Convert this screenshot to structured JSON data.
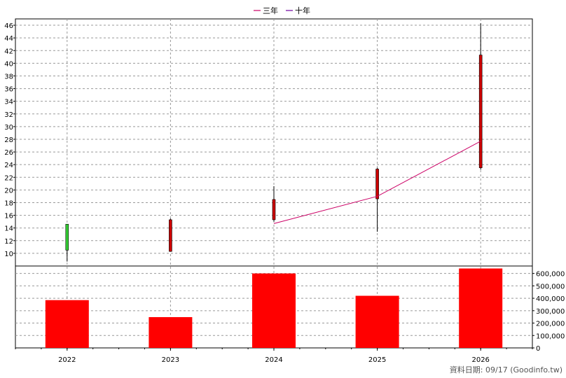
{
  "legend": [
    {
      "name": "三年",
      "color": "#CC0066"
    },
    {
      "name": "十年",
      "color": "#7000A0"
    }
  ],
  "footer": "資料日期: 09/17  (Goodinfo.tw)",
  "chart_data": [
    {
      "type": "candlestick",
      "categories": [
        "2022",
        "2023",
        "2024",
        "2025",
        "2026"
      ],
      "ylim": [
        8,
        47
      ],
      "yticks": [
        10,
        12,
        14,
        16,
        18,
        20,
        22,
        24,
        26,
        28,
        30,
        32,
        34,
        36,
        38,
        40,
        42,
        44,
        46
      ],
      "candles": [
        {
          "open": 10.5,
          "close": 14.6,
          "high": 14.6,
          "low": 8.7,
          "color": "#33CC33"
        },
        {
          "open": 15.3,
          "close": 10.3,
          "high": 15.5,
          "low": 10.3,
          "color": "#CC0000"
        },
        {
          "open": 18.5,
          "close": 15.3,
          "high": 20.6,
          "low": 15.0,
          "color": "#CC0000"
        },
        {
          "open": 23.3,
          "close": 18.6,
          "high": 23.5,
          "low": 13.4,
          "color": "#CC0000"
        },
        {
          "open": 41.3,
          "close": 23.5,
          "high": 46.3,
          "low": 23.2,
          "color": "#CC0000"
        }
      ],
      "series": [
        {
          "name": "三年",
          "color": "#CC0066",
          "points": [
            [
              2,
              14.7
            ],
            [
              3,
              19.0
            ],
            [
              4,
              27.7
            ]
          ]
        }
      ],
      "grid": true
    },
    {
      "type": "bar",
      "categories": [
        "2022",
        "2023",
        "2024",
        "2025",
        "2026"
      ],
      "values": [
        385000,
        248000,
        600000,
        420000,
        640000
      ],
      "color": "#FF0000",
      "ylim": [
        0,
        660000
      ],
      "yticks": [
        0,
        100000,
        200000,
        300000,
        400000,
        500000,
        600000
      ],
      "ytick_labels": [
        "0",
        "100,000",
        "200,000",
        "300,000",
        "400,000",
        "500,000",
        "600,000"
      ],
      "grid": true
    }
  ]
}
